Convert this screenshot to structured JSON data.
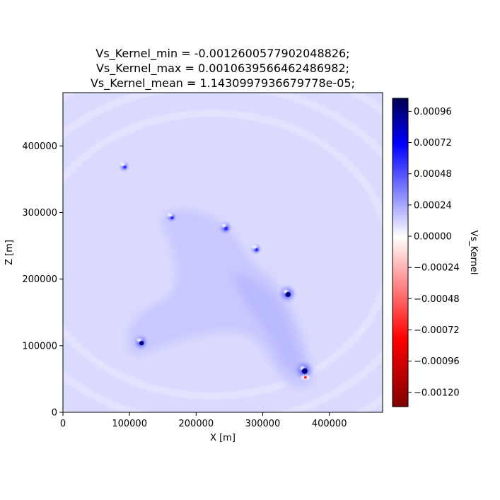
{
  "chart_data": {
    "type": "heatmap",
    "title_lines": [
      "Vs_Kernel_min = -0.0012600577902048826;",
      "Vs_Kernel_max = 0.0010639566462486982;",
      "Vs_Kernel_mean = 1.1430997936679778e-05;"
    ],
    "xlabel": "X [m]",
    "ylabel": "Z [m]",
    "xlim": [
      0,
      480000
    ],
    "ylim": [
      0,
      480000
    ],
    "x_ticks": [
      {
        "value": 0,
        "label": "0"
      },
      {
        "value": 100000,
        "label": "100000"
      },
      {
        "value": 200000,
        "label": "200000"
      },
      {
        "value": 300000,
        "label": "300000"
      },
      {
        "value": 400000,
        "label": "400000"
      }
    ],
    "y_ticks": [
      {
        "value": 0,
        "label": "0"
      },
      {
        "value": 100000,
        "label": "100000"
      },
      {
        "value": 200000,
        "label": "200000"
      },
      {
        "value": 300000,
        "label": "300000"
      },
      {
        "value": 400000,
        "label": "400000"
      }
    ],
    "colorbar": {
      "label": "Vs_Kernel",
      "range": [
        -0.00131,
        0.00106
      ],
      "ticks": [
        {
          "value": 0.00096,
          "label": "0.00096"
        },
        {
          "value": 0.00072,
          "label": "0.00072"
        },
        {
          "value": 0.00048,
          "label": "0.00048"
        },
        {
          "value": 0.00024,
          "label": "0.00024"
        },
        {
          "value": 0.0,
          "label": "0.00000"
        },
        {
          "value": -0.00024,
          "label": "−0.00024"
        },
        {
          "value": -0.00048,
          "label": "−0.00048"
        },
        {
          "value": -0.00072,
          "label": "−0.00072"
        },
        {
          "value": -0.00096,
          "label": "−0.00096"
        },
        {
          "value": -0.0012,
          "label": "−0.00120"
        }
      ],
      "colormap": "seismic_r",
      "colors": [
        "#800000",
        "#ff0000",
        "#ffffff",
        "#0000ff",
        "#000050"
      ]
    },
    "background_value": 4e-05,
    "features": [
      {
        "name": "source-1",
        "x": 117000,
        "z": 105000,
        "amplitude": 0.0007
      },
      {
        "name": "source-2",
        "x": 163000,
        "z": 293000,
        "amplitude": 0.0002
      },
      {
        "name": "source-3",
        "x": 244000,
        "z": 277000,
        "amplitude": 0.0005
      },
      {
        "name": "source-4",
        "x": 290000,
        "z": 245000,
        "amplitude": 0.0003
      },
      {
        "name": "source-5",
        "x": 337000,
        "z": 178000,
        "amplitude": 0.0009
      },
      {
        "name": "source-6",
        "x": 362000,
        "z": 63000,
        "amplitude": 0.00106
      },
      {
        "name": "source-7",
        "x": 92000,
        "z": 369000,
        "amplitude": 8e-05
      }
    ],
    "grid": false
  }
}
